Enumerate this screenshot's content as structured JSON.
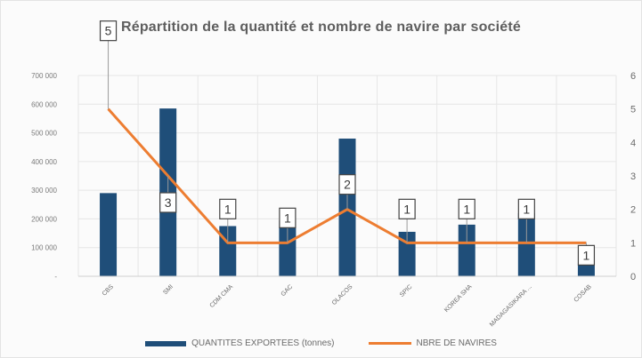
{
  "chart_data": {
    "type": "bar",
    "title": "Répartition de la quantité et nombre de navire par société",
    "categories": [
      "CBS",
      "SMI",
      "CDM CMA",
      "GAC",
      "OLACOS",
      "SPIC",
      "KOREA SHA",
      "MADAGASIKARA ...",
      "COSAB"
    ],
    "series": [
      {
        "name": "QUANTITES EXPORTEES (tonnes)",
        "type": "bar",
        "axis": "left",
        "color": "#1f4e79",
        "values": [
          290000,
          585000,
          175000,
          195000,
          480000,
          155000,
          180000,
          220000,
          45000
        ]
      },
      {
        "name": "NBRE DE NAVIRES",
        "type": "line",
        "axis": "right",
        "color": "#ed7d31",
        "values": [
          5,
          3,
          1,
          1,
          2,
          1,
          1,
          1,
          1
        ]
      }
    ],
    "data_labels": [
      "5",
      "3",
      "1",
      "1",
      "2",
      "1",
      "1",
      "1",
      "1"
    ],
    "y_left": {
      "range": [
        0,
        700000
      ],
      "ticks": [
        "-",
        "100 000",
        "200 000",
        "300 000",
        "400 000",
        "500 000",
        "600 000",
        "700 000"
      ]
    },
    "y_right": {
      "range": [
        0,
        6
      ],
      "ticks": [
        "0",
        "1",
        "2",
        "3",
        "4",
        "5",
        "6"
      ]
    },
    "grid": true,
    "legend_position": "bottom"
  }
}
